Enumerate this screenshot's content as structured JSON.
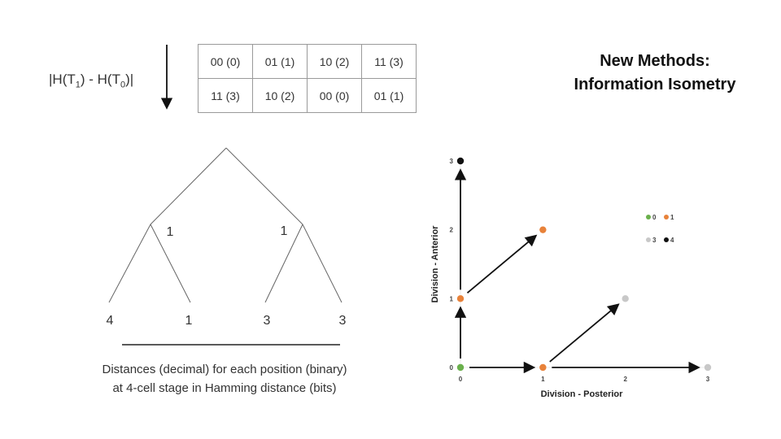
{
  "formula": {
    "prefix": "|H(T",
    "sub1": "1",
    "middle": ") - H(T",
    "sub0": "0",
    "suffix": ")|"
  },
  "grid": {
    "rows": [
      [
        "00 (0)",
        "01 (1)",
        "10 (2)",
        "11 (3)"
      ],
      [
        "11 (3)",
        "10 (2)",
        "00 (0)",
        "01 (1)"
      ]
    ]
  },
  "title": {
    "line1": "New Methods:",
    "line2": "Information Isometry"
  },
  "tree": {
    "branch_labels": [
      "1",
      "1"
    ],
    "leaf_labels": [
      "4",
      "1",
      "3",
      "3"
    ]
  },
  "caption": {
    "line1": "Distances (decimal) for each position (binary)",
    "line2": "at 4-cell stage in Hamming distance (bits)"
  },
  "chart_data": {
    "type": "scatter",
    "title": "",
    "xlabel": "Division - Posterior",
    "ylabel": "Division - Anterior",
    "xlim": [
      0,
      3
    ],
    "ylim": [
      0,
      3
    ],
    "x_ticks": [
      "0",
      "1",
      "2",
      "3"
    ],
    "y_ticks": [
      "0",
      "1",
      "2",
      "3"
    ],
    "series": [
      {
        "name": "0",
        "color": "#6ab04c",
        "points": [
          [
            0,
            0
          ]
        ]
      },
      {
        "name": "1",
        "color": "#e8823a",
        "points": [
          [
            1,
            0
          ],
          [
            0,
            1
          ],
          [
            1,
            2
          ]
        ]
      },
      {
        "name": "3",
        "color": "#c8c8c8",
        "points": [
          [
            2,
            1
          ],
          [
            3,
            0
          ]
        ]
      },
      {
        "name": "4",
        "color": "#111111",
        "points": [
          [
            0,
            3
          ]
        ]
      }
    ],
    "arrows": [
      {
        "from": [
          0,
          0
        ],
        "to": [
          1,
          0
        ]
      },
      {
        "from": [
          1,
          0
        ],
        "to": [
          3,
          0
        ]
      },
      {
        "from": [
          0,
          0
        ],
        "to": [
          0,
          1
        ]
      },
      {
        "from": [
          0,
          1
        ],
        "to": [
          0,
          3
        ]
      },
      {
        "from": [
          0,
          1
        ],
        "to": [
          1,
          2
        ]
      },
      {
        "from": [
          1,
          0
        ],
        "to": [
          2,
          1
        ]
      }
    ],
    "legend": [
      {
        "label": "0",
        "color": "#6ab04c"
      },
      {
        "label": "1",
        "color": "#e8823a"
      },
      {
        "label": "3",
        "color": "#c8c8c8"
      },
      {
        "label": "4",
        "color": "#111111"
      }
    ]
  }
}
